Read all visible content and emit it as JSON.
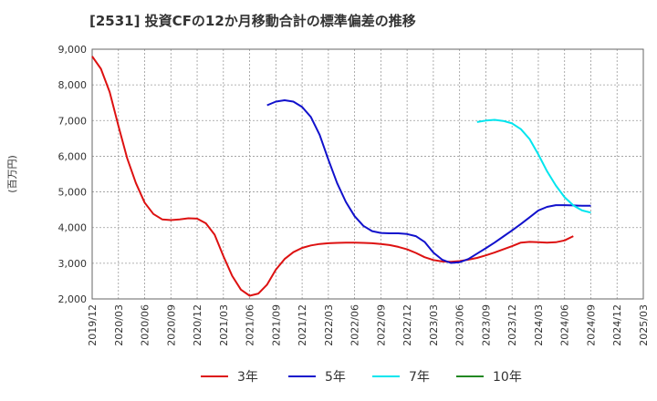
{
  "chart_data": {
    "type": "line",
    "title": "[2531]  投資CFの12か月移動合計の標準偏差の推移",
    "ylabel": "(百万円)",
    "xlabel": "",
    "ylim": [
      2000,
      9000
    ],
    "yticks": [
      2000,
      3000,
      4000,
      5000,
      6000,
      7000,
      8000,
      9000
    ],
    "ytick_labels": [
      "2,000",
      "3,000",
      "4,000",
      "5,000",
      "6,000",
      "7,000",
      "8,000",
      "9,000"
    ],
    "xticks": [
      "2019/12",
      "2020/03",
      "2020/06",
      "2020/09",
      "2020/12",
      "2021/03",
      "2021/06",
      "2021/09",
      "2021/12",
      "2022/03",
      "2022/06",
      "2022/09",
      "2022/12",
      "2023/03",
      "2023/06",
      "2023/09",
      "2023/12",
      "2024/03",
      "2024/06",
      "2024/09",
      "2024/12",
      "2025/03"
    ],
    "x_start": "2019/12",
    "x_end": "2025/03",
    "grid": true,
    "legend_position": "bottom",
    "series": [
      {
        "name": "3年",
        "color": "#dd1111",
        "x_start": "2019/12",
        "values": [
          8800,
          8450,
          7800,
          6850,
          5950,
          5250,
          4700,
          4380,
          4230,
          4210,
          4230,
          4260,
          4250,
          4120,
          3800,
          3200,
          2650,
          2260,
          2090,
          2150,
          2400,
          2820,
          3120,
          3310,
          3430,
          3500,
          3540,
          3560,
          3570,
          3580,
          3580,
          3570,
          3560,
          3540,
          3510,
          3460,
          3390,
          3290,
          3170,
          3090,
          3050,
          3040,
          3060,
          3100,
          3150,
          3220,
          3300,
          3390,
          3480,
          3580,
          3600,
          3590,
          3580,
          3590,
          3640,
          3760
        ]
      },
      {
        "name": "5年",
        "color": "#1111cc",
        "x_start": "2021/08",
        "values": [
          7430,
          7530,
          7570,
          7530,
          7380,
          7100,
          6600,
          5900,
          5250,
          4720,
          4320,
          4050,
          3900,
          3850,
          3840,
          3840,
          3820,
          3760,
          3600,
          3300,
          3100,
          3010,
          3030,
          3120,
          3270,
          3420,
          3580,
          3750,
          3920,
          4100,
          4290,
          4480,
          4580,
          4630,
          4630,
          4620,
          4610,
          4610
        ]
      },
      {
        "name": "7年",
        "color": "#00e5ee",
        "x_start": "2023/08",
        "values": [
          6960,
          7000,
          7020,
          6990,
          6920,
          6760,
          6480,
          6050,
          5580,
          5180,
          4850,
          4620,
          4480,
          4420
        ]
      },
      {
        "name": "10年",
        "color": "#228822",
        "x_start": "2019/12",
        "values": []
      }
    ]
  }
}
